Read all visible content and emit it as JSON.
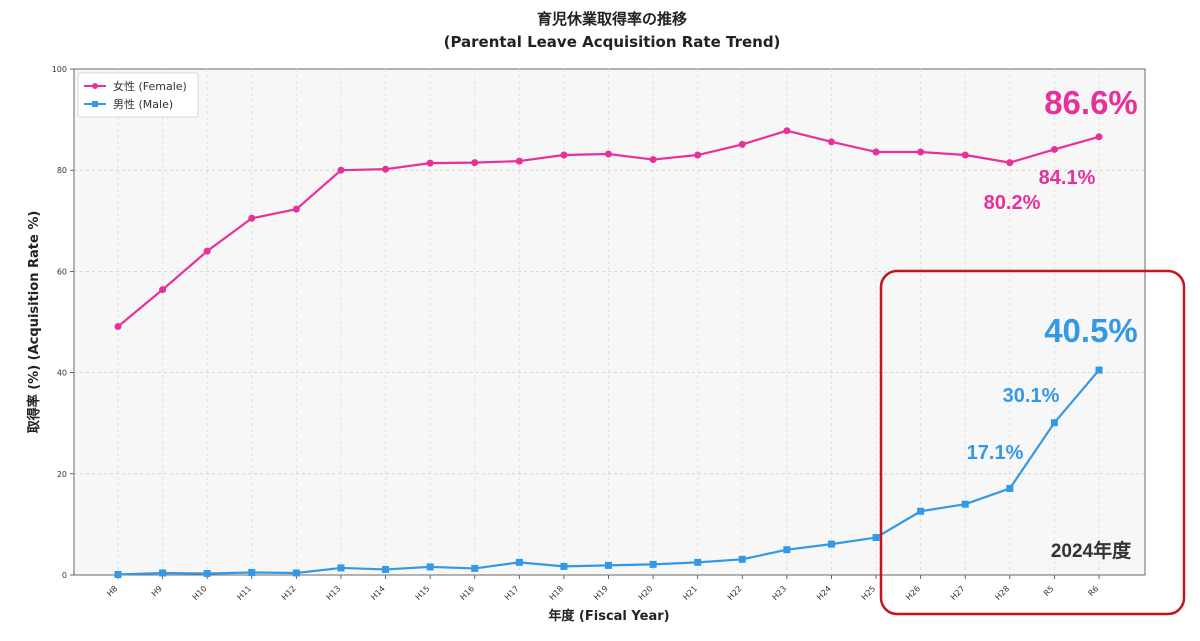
{
  "chart_data": {
    "type": "line",
    "title": "育児休業取得率の推移",
    "subtitle": "(Parental Leave Acquisition Rate Trend)",
    "xlabel": "年度 (Fiscal Year)",
    "ylabel": "取得率 (%) (Acquisition Rate %)",
    "ylim": [
      0,
      100
    ],
    "yticks": [
      0,
      20,
      40,
      60,
      80,
      100
    ],
    "grid": true,
    "legend_position": "top-left",
    "categories": [
      "H8",
      "H9",
      "H10",
      "H11",
      "H12",
      "H13",
      "H14",
      "H15",
      "H16",
      "H17",
      "H18",
      "H19",
      "H20",
      "H21",
      "H22",
      "H23",
      "H24",
      "H25",
      "H26",
      "H27",
      "H28",
      "R5",
      "R6"
    ],
    "series": [
      {
        "name": "女性 (Female)",
        "color": "#e8309a",
        "marker": "circle",
        "values": [
          49.1,
          56.4,
          64.0,
          70.5,
          72.3,
          80.0,
          80.2,
          81.4,
          81.5,
          81.8,
          83.0,
          83.2,
          82.1,
          83.0,
          85.1,
          87.8,
          85.6,
          83.6,
          83.6,
          83.0,
          81.5,
          84.1,
          86.6
        ]
      },
      {
        "name": "男性 (Male)",
        "color": "#3399e6",
        "marker": "square",
        "values": [
          0.1,
          0.4,
          0.3,
          0.5,
          0.4,
          1.4,
          1.1,
          1.6,
          1.3,
          2.5,
          1.7,
          1.9,
          2.1,
          2.5,
          3.1,
          5.0,
          6.1,
          7.4,
          12.6,
          14.0,
          17.1,
          30.1,
          40.5
        ]
      }
    ],
    "annotations": [
      {
        "text": "86.6%",
        "color": "#e8309a",
        "size": "large"
      },
      {
        "text": "84.1%",
        "color": "#e8309a",
        "size": "medium"
      },
      {
        "text": "80.2%",
        "color": "#e8309a",
        "size": "medium"
      },
      {
        "text": "40.5%",
        "color": "#3399e6",
        "size": "large"
      },
      {
        "text": "30.1%",
        "color": "#3399e6",
        "size": "medium"
      },
      {
        "text": "17.1%",
        "color": "#3399e6",
        "size": "medium"
      },
      {
        "text": "2024年度",
        "color": "#333333",
        "size": "medium"
      }
    ],
    "highlight_box_color": "#c0161c"
  }
}
